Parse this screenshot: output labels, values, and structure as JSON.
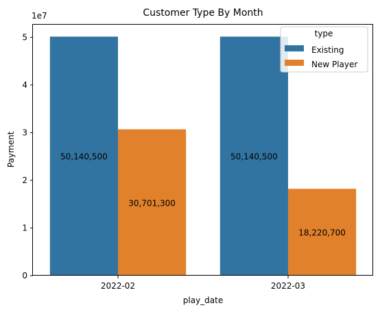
{
  "chart_data": {
    "type": "bar",
    "title": "Customer Type By Month",
    "xlabel": "play_date",
    "ylabel": "Payment",
    "y_scale_label": "1e7",
    "categories": [
      "2022-02",
      "2022-03"
    ],
    "ylim": [
      0,
      52647525
    ],
    "y_ticks": [
      0,
      10000000,
      20000000,
      30000000,
      40000000,
      50000000
    ],
    "y_tick_labels": [
      "0",
      "1",
      "2",
      "3",
      "4",
      "5"
    ],
    "legend": {
      "title": "type",
      "position": "top-right"
    },
    "grid": false,
    "series": [
      {
        "name": "Existing",
        "color": "#3274a1",
        "values": [
          50140500,
          50140500
        ],
        "labels": [
          "50,140,500",
          "50,140,500"
        ]
      },
      {
        "name": "New Player",
        "color": "#e1812c",
        "values": [
          30701300,
          18220700
        ],
        "labels": [
          "30,701,300",
          "18,220,700"
        ]
      }
    ]
  }
}
